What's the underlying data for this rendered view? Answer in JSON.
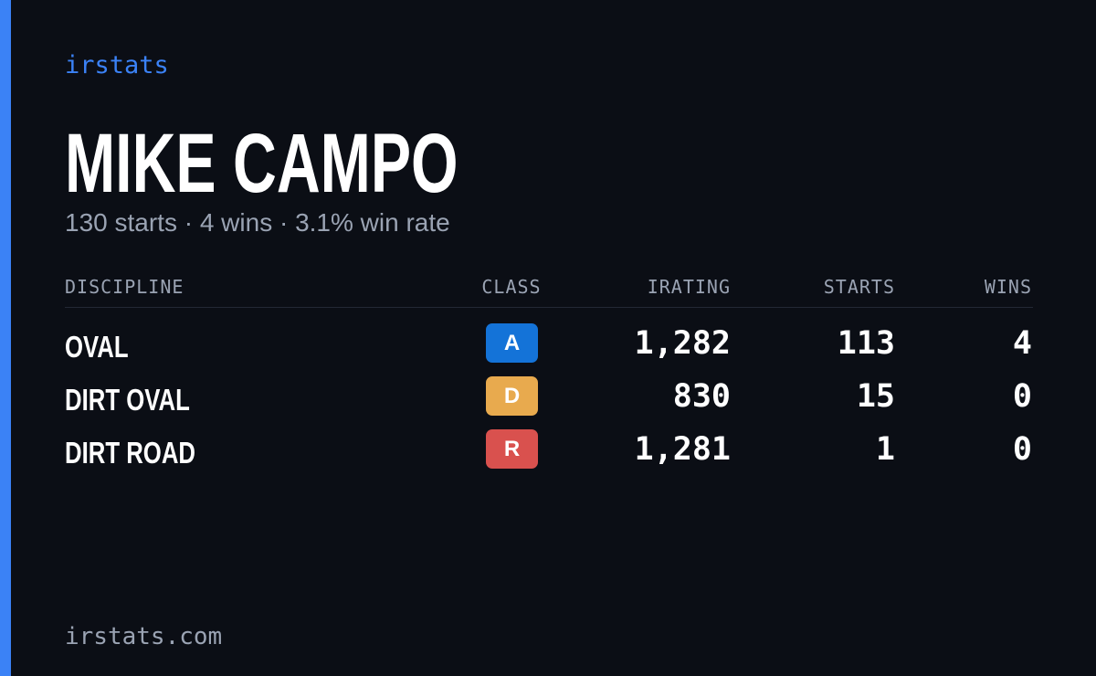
{
  "brand": "irstats",
  "driver": {
    "name": "MIKE CAMPO",
    "summary": "130 starts · 4 wins · 3.1% win rate"
  },
  "table": {
    "headers": [
      "DISCIPLINE",
      "CLASS",
      "IRATING",
      "STARTS",
      "WINS"
    ],
    "rows": [
      {
        "discipline": "OVAL",
        "class": "A",
        "class_color": "#1473d8",
        "irating": "1,282",
        "starts": "113",
        "wins": "4"
      },
      {
        "discipline": "DIRT OVAL",
        "class": "D",
        "class_color": "#e8aa4e",
        "irating": "830",
        "starts": "15",
        "wins": "0"
      },
      {
        "discipline": "DIRT ROAD",
        "class": "R",
        "class_color": "#d9514e",
        "irating": "1,281",
        "starts": "1",
        "wins": "0"
      }
    ]
  },
  "footer": "irstats.com"
}
